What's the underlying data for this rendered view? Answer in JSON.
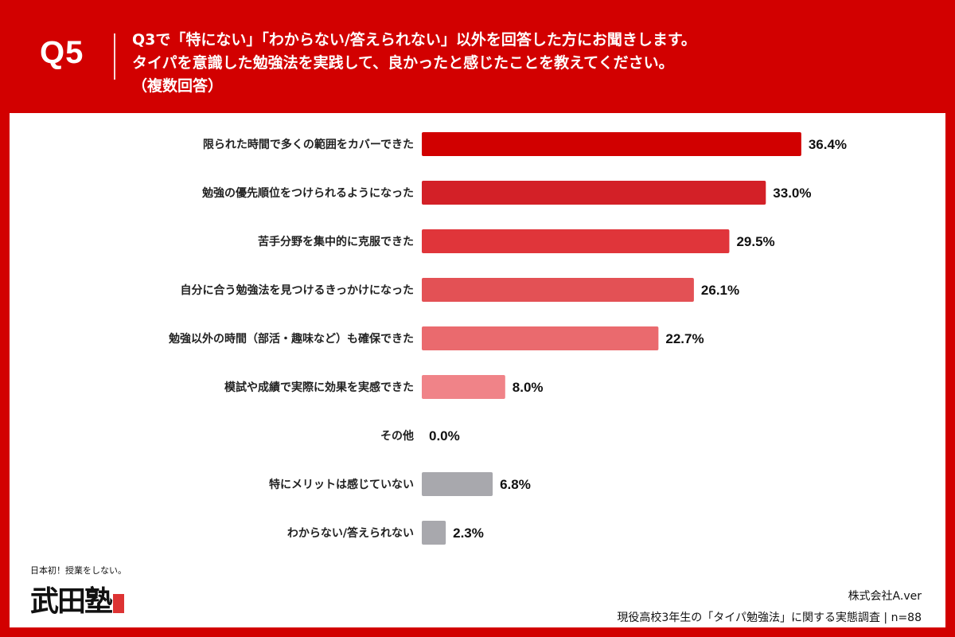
{
  "header": {
    "qnum": "Q5",
    "lines": [
      "Q3で「特にない」「わからない/答えられない」以外を回答した方にお聞きします。",
      "タイパを意識した勉強法を実践して、良かったと感じたことを教えてください。",
      "（複数回答）"
    ]
  },
  "chart_data": {
    "type": "bar",
    "orientation": "horizontal",
    "categories": [
      "限られた時間で多くの範囲をカバーできた",
      "勉強の優先順位をつけられるようになった",
      "苦手分野を集中的に克服できた",
      "自分に合う勉強法を見つけるきっかけになった",
      "勉強以外の時間（部活・趣味など）も確保できた",
      "模試や成績で実際に効果を実感できた",
      "その他",
      "特にメリットは感じていない",
      "わからない/答えられない"
    ],
    "values": [
      36.4,
      33.0,
      29.5,
      26.1,
      22.7,
      8.0,
      0.0,
      6.8,
      2.3
    ],
    "value_labels": [
      "36.4%",
      "33.0%",
      "29.5%",
      "26.1%",
      "22.7%",
      "8.0%",
      "0.0%",
      "6.8%",
      "2.3%"
    ],
    "unit": "%",
    "colors": [
      "#d10000",
      "#d32027",
      "#e0353a",
      "#e35155",
      "#ea6a6e",
      "#f08388",
      "#f08388",
      "#a8a8ad",
      "#a8a8ad"
    ],
    "grid": false,
    "legend": "none"
  },
  "logo": {
    "tagline": "日本初！授業をしない。",
    "name": "武田塾"
  },
  "footer": {
    "company": "株式会社A.ver",
    "survey": "現役高校3年生の「タイパ勉強法」に関する実態調査 | n=88"
  }
}
